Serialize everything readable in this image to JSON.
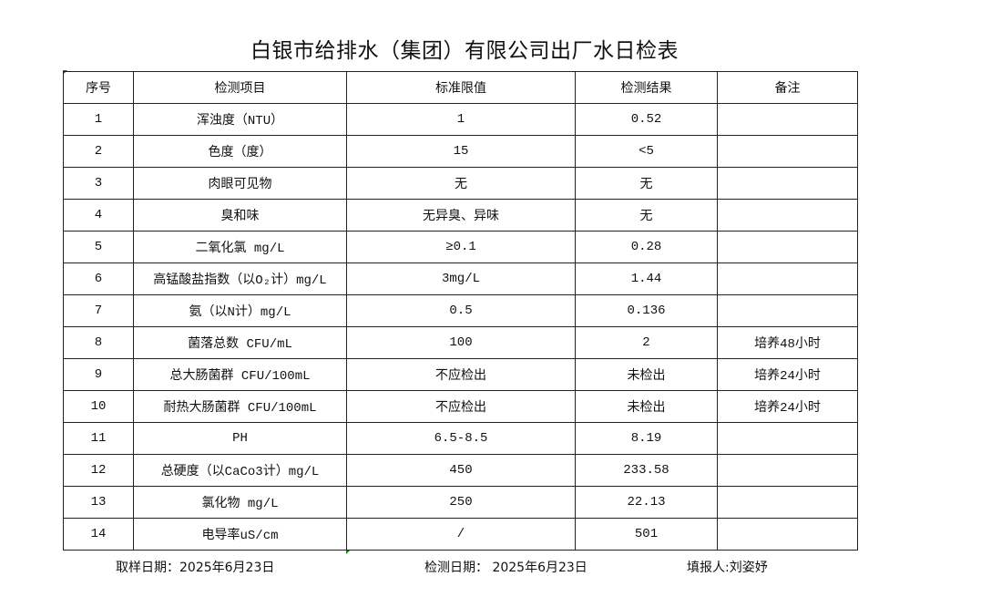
{
  "title": "白银市给排水（集团）有限公司出厂水日检表",
  "headers": [
    "序号",
    "检测项目",
    "标准限值",
    "检测结果",
    "备注"
  ],
  "rows": [
    {
      "no": "1",
      "item": "浑浊度（NTU）",
      "limit": "1",
      "result": "0.52",
      "note": ""
    },
    {
      "no": "2",
      "item": "色度（度）",
      "limit": "15",
      "result": "<5",
      "note": ""
    },
    {
      "no": "3",
      "item": "肉眼可见物",
      "limit": "无",
      "result": "无",
      "note": ""
    },
    {
      "no": "4",
      "item": "臭和味",
      "limit": "无异臭、异味",
      "result": "无",
      "note": ""
    },
    {
      "no": "5",
      "item": "二氧化氯 mg/L",
      "limit": "≥0.1",
      "result": "0.28",
      "note": ""
    },
    {
      "no": "6",
      "item": "高锰酸盐指数（以O₂计）mg/L",
      "limit": "3mg/L",
      "result": "1.44",
      "note": ""
    },
    {
      "no": "7",
      "item": "氨（以N计）mg/L",
      "limit": "0.5",
      "result": "0.136",
      "note": ""
    },
    {
      "no": "8",
      "item": "菌落总数 CFU/mL",
      "limit": "100",
      "result": "2",
      "note": "培养48小时"
    },
    {
      "no": "9",
      "item": "总大肠菌群 CFU/100mL",
      "limit": "不应检出",
      "result": "未检出",
      "note": "培养24小时"
    },
    {
      "no": "10",
      "item": "耐热大肠菌群 CFU/100mL",
      "limit": "不应检出",
      "result": "未检出",
      "note": "培养24小时"
    },
    {
      "no": "11",
      "item": "PH",
      "limit": "6.5-8.5",
      "result": "8.19",
      "note": ""
    },
    {
      "no": "12",
      "item": "总硬度（以CaCo3计）mg/L",
      "limit": "450",
      "result": "233.58",
      "note": ""
    },
    {
      "no": "13",
      "item": "氯化物 mg/L",
      "limit": "250",
      "result": "22.13",
      "note": ""
    },
    {
      "no": "14",
      "item": "电导率uS/cm",
      "limit": "/",
      "result": "501",
      "note": ""
    }
  ],
  "footer": {
    "sample_date": "取样日期：2025年6月23日",
    "test_date": "检测日期： 2025年6月23日",
    "reporter": "填报人:刘姿妤"
  }
}
